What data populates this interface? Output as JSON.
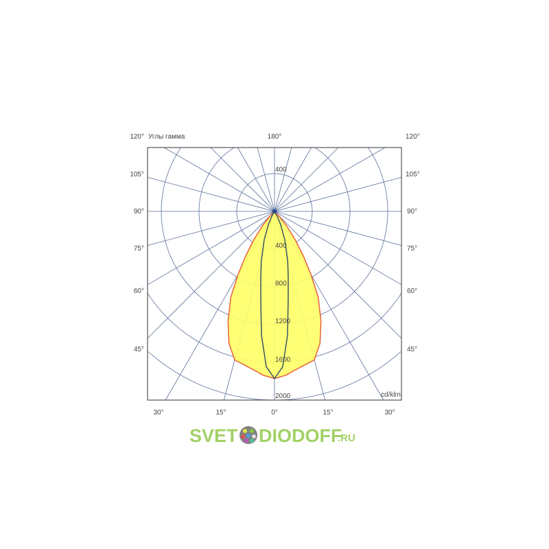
{
  "chart_data": {
    "type": "polar-line",
    "title": "",
    "legend_text": "Углы гамма",
    "unit_label": "cd/klm",
    "radial_ticks": [
      400,
      800,
      1200,
      1600,
      2000
    ],
    "radial_tick_labels_top": [
      "400"
    ],
    "radial_tick_labels_bottom": [
      "400",
      "800",
      "1200",
      "1600",
      "2000"
    ],
    "angle_labels_left": [
      "120°",
      "105°",
      "90°",
      "75°",
      "60°",
      "45°",
      "30°"
    ],
    "angle_labels_right": [
      "120°",
      "105°",
      "90°",
      "75°",
      "60°",
      "45°",
      "30°"
    ],
    "angle_labels_top": [
      "180°"
    ],
    "angle_labels_bottom": [
      "15°",
      "0°",
      "15°"
    ],
    "grid": true,
    "series": [
      {
        "fill": "#ffff66",
        "stroke": "#e8603a",
        "angles": [
          0,
          4,
          7,
          11,
          15,
          19,
          23,
          27,
          30,
          33,
          36,
          40,
          44,
          48
        ],
        "values": [
          1772,
          1740,
          1700,
          1660,
          1630,
          1480,
          1260,
          1020,
          773,
          560,
          375,
          200,
          60,
          0
        ]
      },
      {
        "fill": "none",
        "stroke": "#3a5560",
        "angles": [
          0,
          3,
          6,
          9,
          12,
          15,
          20,
          25,
          30,
          35
        ],
        "values": [
          1772,
          1650,
          1320,
          930,
          700,
          540,
          320,
          150,
          50,
          0
        ]
      }
    ]
  },
  "watermark": {
    "text_a": "SVET",
    "text_b": "DIODOFF",
    "text_c": ".RU"
  }
}
